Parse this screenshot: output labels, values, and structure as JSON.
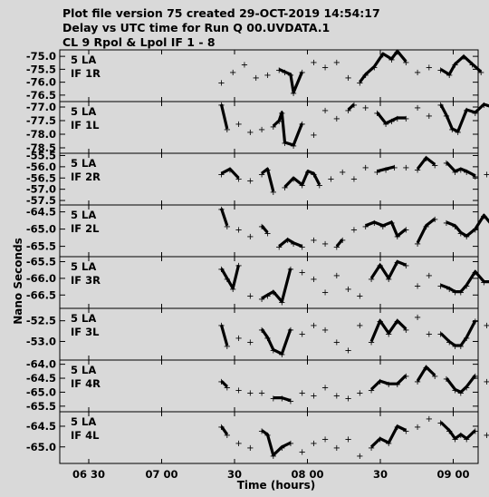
{
  "header": {
    "line1": "Plot file version 75  created 29-OCT-2019 14:54:17",
    "line2": "Delay vs UTC time for Run Q 00.UVDATA.1",
    "line3": "CL 9  Rpol & Lpol  IF 1 - 8"
  },
  "chart_data": {
    "type": "scatter",
    "title": "Delay vs UTC time for Run Q 00.UVDATA.1",
    "xlabel": "Time (hours)",
    "ylabel": "Nano Seconds",
    "x_ticks": [
      "06 30",
      "07 00",
      "30",
      "08 00",
      "30",
      "09 00",
      "30"
    ],
    "x_range": [
      "06:17",
      "09:42"
    ],
    "grid": false,
    "panels": [
      {
        "label_line1": "5 LA",
        "label_line2": "IF 1R",
        "yticks": [
          "-75.0",
          "-75.5",
          "-76.0",
          "-76.5"
        ],
        "tick_values": [
          -75.0,
          -75.5,
          -76.0,
          -76.5
        ],
        "ylim": [
          -76.75,
          -74.75
        ],
        "points": [
          [
            30,
            -76.0
          ],
          [
            34,
            -75.6
          ],
          [
            38,
            -75.3
          ],
          [
            42,
            -75.8
          ],
          [
            46,
            -75.7
          ],
          [
            50,
            -75.5
          ],
          [
            52,
            -75.6
          ],
          [
            54,
            -75.7
          ],
          [
            55,
            -76.4
          ],
          [
            58,
            -75.6
          ],
          [
            62,
            -75.2
          ],
          [
            66,
            -75.4
          ],
          [
            70,
            -75.2
          ],
          [
            74,
            -75.8
          ],
          [
            78,
            -76.0
          ],
          [
            80,
            -75.7
          ],
          [
            83,
            -75.4
          ],
          [
            86,
            -74.9
          ],
          [
            89,
            -75.1
          ],
          [
            91,
            -74.8
          ],
          [
            94,
            -75.2
          ],
          [
            98,
            -75.6
          ],
          [
            102,
            -75.4
          ],
          [
            106,
            -75.5
          ],
          [
            109,
            -75.7
          ],
          [
            111,
            -75.3
          ],
          [
            114,
            -75.0
          ],
          [
            117,
            -75.3
          ],
          [
            120,
            -75.6
          ],
          [
            124,
            -75.7
          ],
          [
            128,
            -75.8
          ],
          [
            132,
            -75.6
          ],
          [
            136,
            -75.7
          ],
          [
            138,
            -75.6
          ]
        ]
      },
      {
        "label_line1": "5 LA",
        "label_line2": "IF 1L",
        "yticks": [
          "-77.0",
          "-77.5",
          "-78.0",
          "-78.5"
        ],
        "tick_values": [
          -77.0,
          -77.5,
          -78.0,
          -78.5
        ],
        "ylim": [
          -78.7,
          -76.8
        ],
        "points": [
          [
            30,
            -76.9
          ],
          [
            32,
            -77.8
          ],
          [
            36,
            -77.6
          ],
          [
            40,
            -77.9
          ],
          [
            44,
            -77.8
          ],
          [
            48,
            -77.7
          ],
          [
            50,
            -77.5
          ],
          [
            51,
            -77.2
          ],
          [
            52,
            -78.3
          ],
          [
            55,
            -78.4
          ],
          [
            58,
            -77.6
          ],
          [
            62,
            -78.0
          ],
          [
            66,
            -77.1
          ],
          [
            70,
            -77.4
          ],
          [
            74,
            -77.1
          ],
          [
            76,
            -76.9
          ],
          [
            80,
            -77.0
          ],
          [
            84,
            -77.2
          ],
          [
            87,
            -77.6
          ],
          [
            89,
            -77.5
          ],
          [
            91,
            -77.4
          ],
          [
            94,
            -77.4
          ],
          [
            98,
            -77.0
          ],
          [
            102,
            -77.3
          ],
          [
            106,
            -76.9
          ],
          [
            108,
            -77.3
          ],
          [
            110,
            -77.8
          ],
          [
            112,
            -77.9
          ],
          [
            115,
            -77.1
          ],
          [
            118,
            -77.2
          ],
          [
            121,
            -76.9
          ],
          [
            124,
            -77.0
          ],
          [
            128,
            -77.4
          ],
          [
            132,
            -77.6
          ],
          [
            136,
            -77.5
          ],
          [
            138,
            -77.0
          ]
        ]
      },
      {
        "label_line1": "5 LA",
        "label_line2": "IF 2R",
        "yticks": [
          "-55.5",
          "-56.0",
          "-56.5",
          "-57.0",
          "-57.5"
        ],
        "tick_values": [
          -55.5,
          -56.0,
          -56.5,
          -57.0,
          -57.5
        ],
        "ylim": [
          -57.7,
          -55.4
        ],
        "points": [
          [
            30,
            -56.3
          ],
          [
            33,
            -56.1
          ],
          [
            36,
            -56.5
          ],
          [
            40,
            -56.6
          ],
          [
            44,
            -56.3
          ],
          [
            46,
            -56.1
          ],
          [
            48,
            -57.1
          ],
          [
            52,
            -56.9
          ],
          [
            55,
            -56.5
          ],
          [
            58,
            -56.8
          ],
          [
            60,
            -56.2
          ],
          [
            62,
            -56.3
          ],
          [
            64,
            -56.8
          ],
          [
            68,
            -56.5
          ],
          [
            72,
            -56.2
          ],
          [
            76,
            -56.5
          ],
          [
            80,
            -56.0
          ],
          [
            84,
            -56.2
          ],
          [
            87,
            -56.1
          ],
          [
            90,
            -56.0
          ],
          [
            94,
            -56.0
          ],
          [
            98,
            -56.1
          ],
          [
            101,
            -55.6
          ],
          [
            104,
            -55.9
          ],
          [
            108,
            -55.8
          ],
          [
            111,
            -56.2
          ],
          [
            113,
            -56.1
          ],
          [
            115,
            -56.2
          ],
          [
            118,
            -56.4
          ],
          [
            122,
            -56.3
          ],
          [
            126,
            -56.8
          ],
          [
            130,
            -57.0
          ],
          [
            134,
            -56.6
          ],
          [
            138,
            -56.6
          ]
        ]
      },
      {
        "label_line1": "5 LA",
        "label_line2": "IF 2L",
        "yticks": [
          "-64.5",
          "-65.0",
          "-65.5"
        ],
        "tick_values": [
          -64.5,
          -65.0,
          -65.5
        ],
        "ylim": [
          -65.8,
          -64.3
        ],
        "points": [
          [
            30,
            -64.4
          ],
          [
            32,
            -64.9
          ],
          [
            36,
            -65.0
          ],
          [
            40,
            -65.2
          ],
          [
            44,
            -64.9
          ],
          [
            46,
            -65.1
          ],
          [
            50,
            -65.5
          ],
          [
            53,
            -65.3
          ],
          [
            55,
            -65.4
          ],
          [
            58,
            -65.5
          ],
          [
            62,
            -65.3
          ],
          [
            66,
            -65.4
          ],
          [
            70,
            -65.5
          ],
          [
            72,
            -65.3
          ],
          [
            76,
            -65.0
          ],
          [
            80,
            -64.9
          ],
          [
            83,
            -64.8
          ],
          [
            86,
            -64.9
          ],
          [
            89,
            -64.8
          ],
          [
            91,
            -65.2
          ],
          [
            94,
            -65.0
          ],
          [
            98,
            -65.4
          ],
          [
            101,
            -64.9
          ],
          [
            104,
            -64.7
          ],
          [
            108,
            -64.8
          ],
          [
            111,
            -64.9
          ],
          [
            113,
            -65.1
          ],
          [
            115,
            -65.2
          ],
          [
            118,
            -65.0
          ],
          [
            121,
            -64.6
          ],
          [
            124,
            -64.9
          ],
          [
            128,
            -65.1
          ],
          [
            132,
            -65.5
          ],
          [
            136,
            -65.4
          ],
          [
            138,
            -65.3
          ]
        ]
      },
      {
        "label_line1": "5 LA",
        "label_line2": "IF 3R",
        "yticks": [
          "-65.5",
          "-66.0",
          "-66.5"
        ],
        "tick_values": [
          -65.5,
          -66.0,
          -66.5
        ],
        "ylim": [
          -66.9,
          -65.35
        ],
        "points": [
          [
            30,
            -65.7
          ],
          [
            32,
            -66.0
          ],
          [
            34,
            -66.3
          ],
          [
            36,
            -65.6
          ],
          [
            40,
            -66.5
          ],
          [
            44,
            -66.6
          ],
          [
            46,
            -66.5
          ],
          [
            48,
            -66.4
          ],
          [
            51,
            -66.7
          ],
          [
            54,
            -65.7
          ],
          [
            58,
            -65.8
          ],
          [
            62,
            -66.0
          ],
          [
            66,
            -66.4
          ],
          [
            70,
            -65.9
          ],
          [
            74,
            -66.3
          ],
          [
            78,
            -66.5
          ],
          [
            82,
            -66.0
          ],
          [
            85,
            -65.6
          ],
          [
            88,
            -66.0
          ],
          [
            91,
            -65.5
          ],
          [
            94,
            -65.6
          ],
          [
            98,
            -66.2
          ],
          [
            102,
            -65.9
          ],
          [
            106,
            -66.2
          ],
          [
            109,
            -66.3
          ],
          [
            111,
            -66.4
          ],
          [
            113,
            -66.4
          ],
          [
            115,
            -66.2
          ],
          [
            118,
            -65.8
          ],
          [
            121,
            -66.1
          ],
          [
            124,
            -66.1
          ],
          [
            127,
            -65.8
          ],
          [
            130,
            -66.3
          ],
          [
            134,
            -66.5
          ],
          [
            138,
            -65.6
          ]
        ]
      },
      {
        "label_line1": "5 LA",
        "label_line2": "IF 3L",
        "yticks": [
          "-52.5",
          "-53.0"
        ],
        "tick_values": [
          -52.5,
          -53.0
        ],
        "ylim": [
          -53.45,
          -52.2
        ],
        "points": [
          [
            30,
            -52.6
          ],
          [
            32,
            -53.1
          ],
          [
            36,
            -52.9
          ],
          [
            40,
            -53.0
          ],
          [
            44,
            -52.7
          ],
          [
            46,
            -52.9
          ],
          [
            48,
            -53.2
          ],
          [
            51,
            -53.3
          ],
          [
            54,
            -52.7
          ],
          [
            58,
            -52.8
          ],
          [
            62,
            -52.6
          ],
          [
            66,
            -52.7
          ],
          [
            70,
            -53.0
          ],
          [
            74,
            -53.2
          ],
          [
            78,
            -52.6
          ],
          [
            82,
            -53.0
          ],
          [
            85,
            -52.5
          ],
          [
            88,
            -52.8
          ],
          [
            91,
            -52.5
          ],
          [
            94,
            -52.7
          ],
          [
            98,
            -52.4
          ],
          [
            102,
            -52.8
          ],
          [
            106,
            -52.8
          ],
          [
            109,
            -53.0
          ],
          [
            111,
            -53.1
          ],
          [
            113,
            -53.1
          ],
          [
            115,
            -52.9
          ],
          [
            118,
            -52.5
          ],
          [
            122,
            -52.6
          ],
          [
            126,
            -53.0
          ],
          [
            130,
            -52.8
          ],
          [
            134,
            -53.1
          ],
          [
            138,
            -53.2
          ]
        ]
      },
      {
        "label_line1": "5 LA",
        "label_line2": "IF 4R",
        "yticks": [
          "-64.0",
          "-64.5",
          "-65.0",
          "-65.5"
        ],
        "tick_values": [
          -64.0,
          -64.5,
          -65.0,
          -65.5
        ],
        "ylim": [
          -65.7,
          -63.85
        ],
        "points": [
          [
            30,
            -64.6
          ],
          [
            32,
            -64.8
          ],
          [
            36,
            -64.9
          ],
          [
            40,
            -65.0
          ],
          [
            44,
            -65.0
          ],
          [
            48,
            -65.2
          ],
          [
            51,
            -65.2
          ],
          [
            54,
            -65.3
          ],
          [
            58,
            -65.0
          ],
          [
            62,
            -65.1
          ],
          [
            66,
            -64.8
          ],
          [
            70,
            -65.1
          ],
          [
            74,
            -65.2
          ],
          [
            78,
            -65.0
          ],
          [
            82,
            -64.9
          ],
          [
            85,
            -64.6
          ],
          [
            88,
            -64.7
          ],
          [
            91,
            -64.7
          ],
          [
            94,
            -64.4
          ],
          [
            98,
            -64.6
          ],
          [
            101,
            -64.1
          ],
          [
            104,
            -64.4
          ],
          [
            108,
            -64.5
          ],
          [
            111,
            -64.9
          ],
          [
            113,
            -65.0
          ],
          [
            115,
            -64.8
          ],
          [
            118,
            -64.4
          ],
          [
            122,
            -64.6
          ],
          [
            126,
            -64.9
          ],
          [
            130,
            -65.3
          ],
          [
            134,
            -65.5
          ],
          [
            138,
            -64.0
          ]
        ]
      },
      {
        "label_line1": "5 LA",
        "label_line2": "IF 4L",
        "yticks": [
          "-64.5",
          "-65.0"
        ],
        "tick_values": [
          -64.5,
          -65.0
        ],
        "ylim": [
          -65.4,
          -64.15
        ],
        "points": [
          [
            30,
            -64.5
          ],
          [
            32,
            -64.7
          ],
          [
            36,
            -64.9
          ],
          [
            40,
            -65.0
          ],
          [
            44,
            -64.6
          ],
          [
            46,
            -64.7
          ],
          [
            48,
            -65.2
          ],
          [
            51,
            -65.0
          ],
          [
            54,
            -64.9
          ],
          [
            58,
            -65.1
          ],
          [
            62,
            -64.9
          ],
          [
            66,
            -64.8
          ],
          [
            70,
            -65.0
          ],
          [
            74,
            -64.8
          ],
          [
            78,
            -65.2
          ],
          [
            82,
            -65.0
          ],
          [
            85,
            -64.8
          ],
          [
            88,
            -64.9
          ],
          [
            91,
            -64.5
          ],
          [
            94,
            -64.6
          ],
          [
            98,
            -64.5
          ],
          [
            102,
            -64.3
          ],
          [
            106,
            -64.4
          ],
          [
            109,
            -64.6
          ],
          [
            111,
            -64.8
          ],
          [
            113,
            -64.7
          ],
          [
            115,
            -64.8
          ],
          [
            118,
            -64.6
          ],
          [
            122,
            -64.7
          ],
          [
            126,
            -64.8
          ],
          [
            130,
            -65.0
          ],
          [
            134,
            -65.1
          ],
          [
            138,
            -64.4
          ]
        ]
      }
    ]
  }
}
